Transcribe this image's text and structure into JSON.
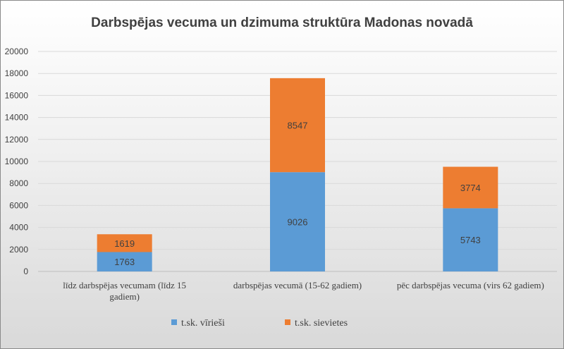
{
  "chart_data": {
    "type": "bar",
    "stacked": true,
    "title": "Darbspējas vecuma un dzimuma struktūra Madonas novadā",
    "categories": [
      [
        "līdz darbspējas vecumam (līdz 15",
        "gadiem)"
      ],
      [
        "darbspējas vecumā (15-62 gadiem)"
      ],
      [
        "pēc darbspējas vecuma (virs 62 gadiem)"
      ]
    ],
    "series": [
      {
        "name": "t.sk. vīrieši",
        "values": [
          1763,
          9026,
          5743
        ],
        "color": "#5b9bd5"
      },
      {
        "name": "t.sk. sievietes",
        "values": [
          1619,
          8547,
          3774
        ],
        "color": "#ed7d31"
      }
    ],
    "ylim": [
      0,
      20000
    ],
    "yticks": [
      0,
      2000,
      4000,
      6000,
      8000,
      10000,
      12000,
      14000,
      16000,
      18000,
      20000
    ],
    "grid": true,
    "legend": "bottom"
  }
}
